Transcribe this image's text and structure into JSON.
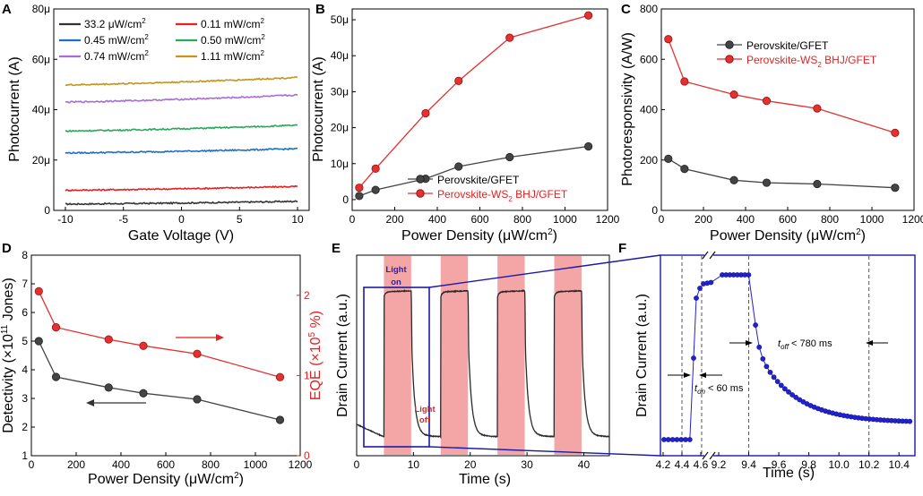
{
  "colors": {
    "black": "#333333",
    "red": "#e32222",
    "blue": "#1f6fc4",
    "green": "#2aa85a",
    "purple": "#a86cd6",
    "gold": "#c4951a",
    "dark_line": "#2a2a2a",
    "dot_blue": "#2222cc",
    "dot_edge": "#1515a0",
    "shade": "#f4a6a6",
    "box_blue": "#1a1aa8",
    "grey_curve": "#555555",
    "grey_marker": "#444444",
    "red_marker": "#e33030"
  },
  "chart_data": [
    {
      "panel": "A",
      "type": "line",
      "xlabel": "Gate Voltage (V)",
      "ylabel": "Photocurrent (A)",
      "xlim": [
        -11,
        11
      ],
      "ylim": [
        0,
        80
      ],
      "xticks": [
        -10,
        -5,
        0,
        5,
        10
      ],
      "yticks": [
        0,
        20,
        40,
        60,
        80
      ],
      "ytick_labels": [
        "0",
        "20μ",
        "40μ",
        "60μ",
        "80μ"
      ],
      "series": [
        {
          "name": "33.2 μW/cm²",
          "color": "black",
          "start": 2.5,
          "end": 3.6
        },
        {
          "name": "0.11 mW/cm²",
          "color": "red",
          "start": 8.0,
          "end": 9.5
        },
        {
          "name": "0.45 mW/cm²",
          "color": "blue",
          "start": 22.8,
          "end": 24.5
        },
        {
          "name": "0.50 mW/cm²",
          "color": "green",
          "start": 31.5,
          "end": 33.8
        },
        {
          "name": "0.74 mW/cm²",
          "color": "purple",
          "start": 43.0,
          "end": 45.8
        },
        {
          "name": "1.11 mW/cm²",
          "color": "gold",
          "start": 49.8,
          "end": 52.8
        }
      ]
    },
    {
      "panel": "B",
      "type": "line",
      "xlabel": "Power Density (μW/cm²)",
      "ylabel": "Photocurrent (A)",
      "xlim": [
        0,
        1200
      ],
      "ylim": [
        -3,
        53
      ],
      "xticks": [
        0,
        200,
        400,
        600,
        800,
        1000,
        1200
      ],
      "yticks": [
        0,
        10,
        20,
        30,
        40,
        50
      ],
      "ytick_labels": [
        "0",
        "10μ",
        "20μ",
        "30μ",
        "40μ",
        "50μ"
      ],
      "series": [
        {
          "name": "Perovskite/GFET",
          "color": "grey_marker",
          "x": [
            33.2,
            110,
            345,
            500,
            740,
            1110
          ],
          "y": [
            1,
            2.7,
            5.8,
            9.2,
            11.8,
            14.8
          ]
        },
        {
          "name": "Perovskite-WS2 BHJ/GFET",
          "color": "red_marker",
          "x": [
            33.2,
            110,
            345,
            500,
            740,
            1110
          ],
          "y": [
            3.3,
            8.6,
            24,
            33,
            45,
            51.2
          ]
        }
      ]
    },
    {
      "panel": "C",
      "type": "line",
      "xlabel": "Power Density (μW/cm²)",
      "ylabel": "Photoresponsivity (A/W)",
      "xlim": [
        0,
        1200
      ],
      "ylim": [
        0,
        800
      ],
      "xticks": [
        0,
        200,
        400,
        600,
        800,
        1000,
        1200
      ],
      "yticks": [
        0,
        200,
        400,
        600,
        800
      ],
      "series": [
        {
          "name": "Perovskite/GFET",
          "color": "grey_marker",
          "x": [
            33.2,
            110,
            345,
            500,
            740,
            1110
          ],
          "y": [
            205,
            165,
            120,
            110,
            105,
            90
          ]
        },
        {
          "name": "Perovskite-WS2 BHJ/GFET",
          "color": "red_marker",
          "x": [
            33.2,
            110,
            345,
            500,
            740,
            1110
          ],
          "y": [
            680,
            512,
            460,
            435,
            405,
            308
          ]
        }
      ]
    },
    {
      "panel": "D",
      "type": "line",
      "xlabel": "Power Density (μW/cm²)",
      "ylabel": "Detectivity (×10¹¹ Jones)",
      "y2label": "EQE (×10⁵ %)",
      "xlim": [
        0,
        1200
      ],
      "ylim": [
        1,
        8
      ],
      "y2lim": [
        0,
        2.5
      ],
      "xticks": [
        0,
        200,
        400,
        600,
        800,
        1000,
        1200
      ],
      "yticks": [
        1,
        2,
        3,
        4,
        5,
        6,
        7,
        8
      ],
      "y2ticks": [
        0,
        1,
        2
      ],
      "series": [
        {
          "name": "Detectivity",
          "axis": "left",
          "color": "grey_marker",
          "x": [
            33.2,
            110,
            345,
            500,
            740,
            1110
          ],
          "y": [
            5.0,
            3.75,
            3.38,
            3.18,
            2.97,
            2.25
          ]
        },
        {
          "name": "EQE",
          "axis": "right",
          "color": "red_marker",
          "x": [
            33.2,
            110,
            345,
            500,
            740,
            1110
          ],
          "y": [
            2.05,
            1.6,
            1.45,
            1.37,
            1.27,
            0.98
          ]
        }
      ]
    },
    {
      "panel": "E",
      "type": "line",
      "xlabel": "Time (s)",
      "ylabel": "Drain Current (a.u.)",
      "xlim": [
        0,
        44.5
      ],
      "xticks": [
        0,
        10,
        20,
        30,
        40
      ],
      "light_on_intervals": [
        [
          4.8,
          9.6
        ],
        [
          14.8,
          19.6
        ],
        [
          24.8,
          29.6
        ],
        [
          34.8,
          39.6
        ]
      ],
      "annotations": [
        "Light on",
        "Light off"
      ]
    },
    {
      "panel": "F",
      "type": "scatter",
      "xlabel": "Time (s)",
      "ylabel": "Drain Current (a.u.)",
      "xticks": [
        4.2,
        4.4,
        4.6,
        9.2,
        9.4,
        9.6,
        9.8,
        10.0,
        10.2,
        10.4
      ],
      "dashed_lines": [
        4.4,
        4.6,
        9.4,
        10.2
      ],
      "annotations": {
        "ton": "< 60 ms",
        "toff": "< 780 ms"
      }
    }
  ],
  "panels": {
    "A": {
      "letter": "A",
      "ytick_labels": [
        "0",
        "20μ",
        "40μ",
        "60μ",
        "80μ"
      ],
      "xtick_labels": [
        "-10",
        "-5",
        "0",
        "5",
        "10"
      ],
      "xlabel": "Gate Voltage (V)",
      "ylabel": "Photocurrent (A)",
      "legend": [
        {
          "text": "33.2 μW/cm",
          "sup": "2"
        },
        {
          "text": "0.11 mW/cm",
          "sup": "2"
        },
        {
          "text": "0.45 mW/cm",
          "sup": "2"
        },
        {
          "text": "0.50 mW/cm",
          "sup": "2"
        },
        {
          "text": "0.74 mW/cm",
          "sup": "2"
        },
        {
          "text": "1.11 mW/cm",
          "sup": "2"
        }
      ]
    },
    "B": {
      "letter": "B",
      "ytick_labels": [
        "0",
        "10μ",
        "20μ",
        "30μ",
        "40μ",
        "50μ"
      ],
      "xtick_labels": [
        "0",
        "200",
        "400",
        "600",
        "800",
        "1000",
        "1200"
      ],
      "xlabel_pre": "Power Density (",
      "xlabel_unit": "μW/cm",
      "xlabel_sup": "2",
      "xlabel_post": ")",
      "ylabel": "Photocurrent (A)",
      "legend1": "Perovskite/GFET",
      "legend2_pre": "Perovskite-WS",
      "legend2_sub": "2",
      "legend2_post": " BHJ/GFET"
    },
    "C": {
      "letter": "C",
      "ytick_labels": [
        "0",
        "200",
        "400",
        "600",
        "800"
      ],
      "xtick_labels": [
        "0",
        "200",
        "400",
        "600",
        "800",
        "1000",
        "1200"
      ],
      "xlabel_pre": "Power Density (",
      "xlabel_unit": "μW/cm",
      "xlabel_sup": "2",
      "xlabel_post": ")",
      "ylabel": "Photoresponsivity (A/W)",
      "legend1": "Perovskite/GFET",
      "legend2_pre": "Perovskite-WS",
      "legend2_sub": "2",
      "legend2_post": " BHJ/GFET"
    },
    "D": {
      "letter": "D",
      "ytick_labels": [
        "1",
        "2",
        "3",
        "4",
        "5",
        "6",
        "7",
        "8"
      ],
      "y2tick_labels": [
        "0",
        "1",
        "2"
      ],
      "xtick_labels": [
        "0",
        "200",
        "400",
        "600",
        "800",
        "1000",
        "1200"
      ],
      "xlabel_pre": "Power Density (",
      "xlabel_unit": "μW/cm",
      "xlabel_sup": "2",
      "xlabel_post": ")",
      "ylabel_pre": "Detectivity (×10",
      "ylabel_sup": "11",
      "ylabel_post": " Jones)",
      "y2label_pre": "EQE (×10",
      "y2label_sup": "5",
      "y2label_post": " %)"
    },
    "E": {
      "letter": "E",
      "xtick_labels": [
        "0",
        "10",
        "20",
        "30",
        "40"
      ],
      "xlabel": "Time (s)",
      "ylabel": "Drain Current (a.u.)",
      "light_on_1": "Light",
      "light_on_2": "on",
      "light_off_1": "Light",
      "light_off_2": "off"
    },
    "F": {
      "letter": "F",
      "xtick_labels": [
        "4.2",
        "4.4",
        "4.6",
        "9.2",
        "9.4",
        "9.6",
        "9.8",
        "10.0",
        "10.2",
        "10.4"
      ],
      "xlabel": "Time (s)",
      "ylabel": "Drain Current (a.u.)",
      "ton_t": "t",
      "ton_sub": "on",
      "ton_val": " < 60 ms",
      "toff_t": "t",
      "toff_sub": "off",
      "toff_val": " < 780 ms"
    }
  }
}
